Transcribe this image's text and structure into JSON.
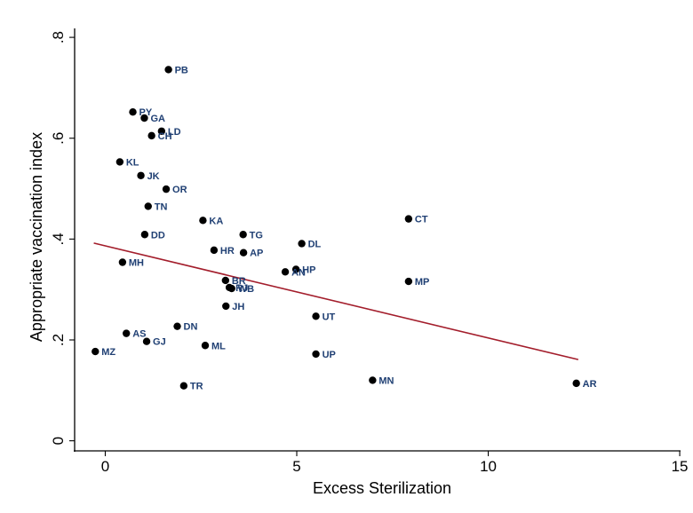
{
  "chart_data": {
    "type": "scatter",
    "xlabel": "Excess Sterilization",
    "ylabel": "Appropriate vaccination index",
    "xlim": [
      -0.8,
      15.3
    ],
    "ylim": [
      -0.02,
      0.86
    ],
    "x_ticks": [
      0,
      5,
      10,
      15
    ],
    "y_ticks": [
      0,
      0.2,
      0.4,
      0.6,
      0.8
    ],
    "x_tick_labels": [
      "0",
      "5",
      "10",
      "15"
    ],
    "y_tick_labels": [
      "0",
      ".2",
      ".4",
      ".6",
      ".8"
    ],
    "grid": false,
    "legend": "none",
    "marker_color": "#000000",
    "label_color": "#1f3f73",
    "fit_line_color": "#a31d2b",
    "points": [
      {
        "label": "PB",
        "x": 1.65,
        "y": 0.736
      },
      {
        "label": "PY",
        "x": 0.72,
        "y": 0.652
      },
      {
        "label": "GA",
        "x": 1.02,
        "y": 0.64
      },
      {
        "label": "LD",
        "x": 1.47,
        "y": 0.614
      },
      {
        "label": "CH",
        "x": 1.21,
        "y": 0.605
      },
      {
        "label": "KL",
        "x": 0.38,
        "y": 0.553
      },
      {
        "label": "JK",
        "x": 0.93,
        "y": 0.526
      },
      {
        "label": "OR",
        "x": 1.59,
        "y": 0.499
      },
      {
        "label": "TN",
        "x": 1.12,
        "y": 0.465
      },
      {
        "label": "KA",
        "x": 2.55,
        "y": 0.437
      },
      {
        "label": "DD",
        "x": 1.03,
        "y": 0.409
      },
      {
        "label": "TG",
        "x": 3.6,
        "y": 0.409
      },
      {
        "label": "DL",
        "x": 5.13,
        "y": 0.391
      },
      {
        "label": "CT",
        "x": 7.92,
        "y": 0.44
      },
      {
        "label": "HR",
        "x": 2.84,
        "y": 0.378
      },
      {
        "label": "AP",
        "x": 3.61,
        "y": 0.373
      },
      {
        "label": "MH",
        "x": 0.45,
        "y": 0.354
      },
      {
        "label": "HP",
        "x": 4.98,
        "y": 0.34
      },
      {
        "label": "AN",
        "x": 4.7,
        "y": 0.335
      },
      {
        "label": "MP",
        "x": 7.92,
        "y": 0.316
      },
      {
        "label": "BR",
        "x": 3.14,
        "y": 0.318
      },
      {
        "label": "RJ",
        "x": 3.24,
        "y": 0.304
      },
      {
        "label": "WB",
        "x": 3.3,
        "y": 0.302
      },
      {
        "label": "JH",
        "x": 3.15,
        "y": 0.267
      },
      {
        "label": "UT",
        "x": 5.5,
        "y": 0.247
      },
      {
        "label": "DN",
        "x": 1.88,
        "y": 0.227
      },
      {
        "label": "AS",
        "x": 0.55,
        "y": 0.213
      },
      {
        "label": "GJ",
        "x": 1.08,
        "y": 0.197
      },
      {
        "label": "ML",
        "x": 2.61,
        "y": 0.189
      },
      {
        "label": "MZ",
        "x": -0.26,
        "y": 0.177
      },
      {
        "label": "UP",
        "x": 5.5,
        "y": 0.172
      },
      {
        "label": "MN",
        "x": 6.98,
        "y": 0.12
      },
      {
        "label": "AR",
        "x": 12.3,
        "y": 0.114
      },
      {
        "label": "TR",
        "x": 2.05,
        "y": 0.109
      }
    ],
    "fit_line": {
      "x": [
        -0.3,
        12.35
      ],
      "y": [
        0.392,
        0.161
      ]
    }
  }
}
